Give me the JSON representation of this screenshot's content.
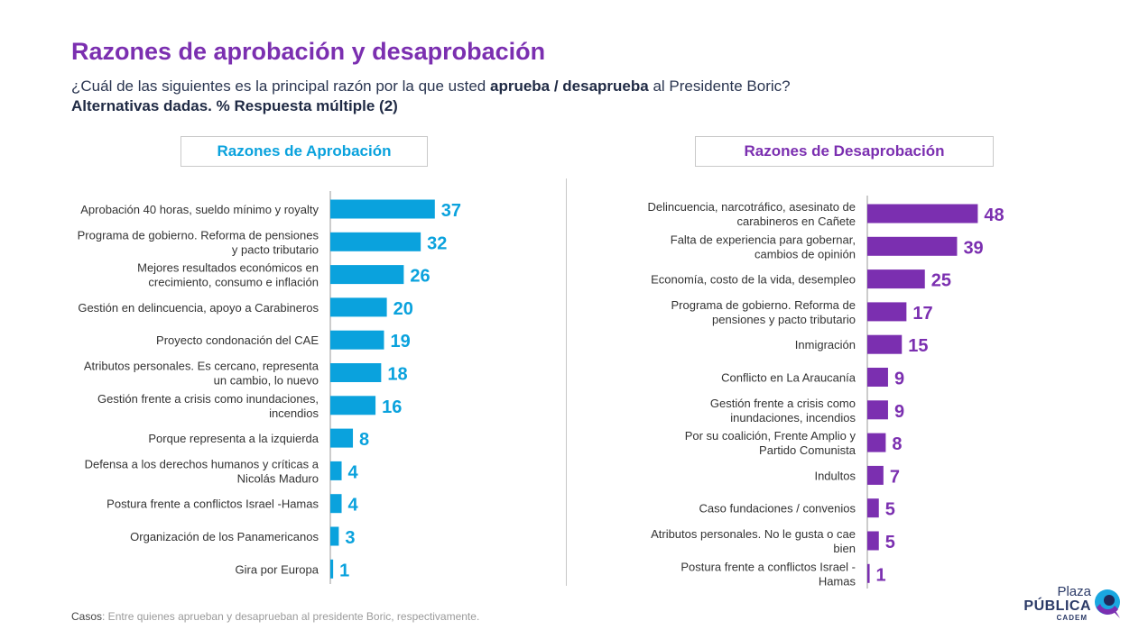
{
  "title": "Razones de aprobación y desaprobación",
  "subtitle": {
    "part1": "¿Cuál de las siguientes es la principal razón por la que usted ",
    "bold": "aprueba / desaprueba",
    "part2": " al Presidente Boric?",
    "line2": "Alternativas dadas. % Respuesta múltiple (2)"
  },
  "colors": {
    "title": "#7b2fb0",
    "approve": "#0aa2dd",
    "disapprove": "#7b2fb0"
  },
  "footer": {
    "label": "Casos",
    "text": ": Entre quienes aprueban y desaprueban al presidente Boric, respectivamente."
  },
  "logo": {
    "plaza": "Plaza",
    "publica": "PÚBLICA",
    "cadem": "CADEM"
  },
  "chart_data": [
    {
      "type": "bar",
      "orientation": "horizontal",
      "title": "Razones de Aprobación",
      "color": "#0aa2dd",
      "categories": [
        [
          "Aprobación 40 horas, sueldo mínimo y royalty"
        ],
        [
          "Programa de gobierno. Reforma de pensiones",
          "y pacto tributario"
        ],
        [
          "Mejores resultados económicos en",
          "crecimiento, consumo e inflación"
        ],
        [
          "Gestión en delincuencia, apoyo a Carabineros"
        ],
        [
          "Proyecto condonación del CAE"
        ],
        [
          "Atributos personales. Es cercano, representa",
          "un cambio, lo nuevo"
        ],
        [
          "Gestión frente a crisis como inundaciones,",
          "incendios"
        ],
        [
          "Porque representa a la izquierda"
        ],
        [
          "Defensa a los derechos humanos y críticas a",
          "Nicolás Maduro"
        ],
        [
          "Postura frente a conflictos Israel -Hamas"
        ],
        [
          "Organización de los Panamericanos"
        ],
        [
          "Gira por Europa"
        ]
      ],
      "values": [
        37,
        32,
        26,
        20,
        19,
        18,
        16,
        8,
        4,
        4,
        3,
        1
      ]
    },
    {
      "type": "bar",
      "orientation": "horizontal",
      "title": "Razones de Desaprobación",
      "color": "#7b2fb0",
      "categories": [
        [
          "Delincuencia, narcotráfico, asesinato de",
          "carabineros en Cañete"
        ],
        [
          "Falta de experiencia para gobernar,",
          "cambios de opinión"
        ],
        [
          "Economía, costo de la vida, desempleo"
        ],
        [
          "Programa de gobierno. Reforma de",
          "pensiones y pacto tributario"
        ],
        [
          "Inmigración"
        ],
        [
          "Conflicto en La Araucanía"
        ],
        [
          "Gestión frente a crisis como",
          "inundaciones, incendios"
        ],
        [
          "Por su coalición, Frente Amplio y",
          "Partido Comunista"
        ],
        [
          "Indultos"
        ],
        [
          "Caso fundaciones / convenios"
        ],
        [
          "Atributos personales. No le gusta o cae",
          "bien"
        ],
        [
          "Postura frente a conflictos Israel -",
          "Hamas"
        ]
      ],
      "values": [
        48,
        39,
        25,
        17,
        15,
        9,
        9,
        8,
        7,
        5,
        5,
        1
      ]
    }
  ]
}
